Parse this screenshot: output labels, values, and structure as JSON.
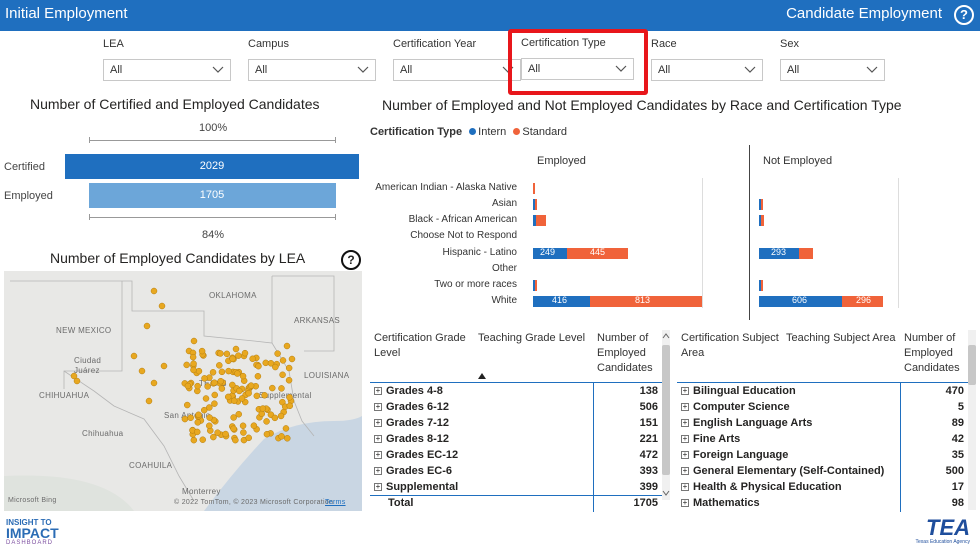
{
  "header": {
    "title": "Initial Employment",
    "right_title": "Candidate Employment",
    "help_glyph": "?"
  },
  "filters": [
    {
      "label": "LEA",
      "value": "All"
    },
    {
      "label": "Campus",
      "value": "All"
    },
    {
      "label": "Certification Year",
      "value": "All"
    },
    {
      "label": "Certification Type",
      "value": "All"
    },
    {
      "label": "Race",
      "value": "All"
    },
    {
      "label": "Sex",
      "value": "All"
    }
  ],
  "funnel": {
    "title": "Number of Certified and Employed Candidates",
    "top_pct": "100%",
    "bottom_pct": "84%",
    "rows": [
      {
        "label": "Certified",
        "value": "2029",
        "count": 2029,
        "color": "#1f6fbf"
      },
      {
        "label": "Employed",
        "value": "1705",
        "count": 1705,
        "color": "#6ca6d9"
      }
    ]
  },
  "map": {
    "title": "Number of Employed Candidates by LEA",
    "labels": [
      "OKLAHOMA",
      "ARKANSAS",
      "NEW MEXICO",
      "Ciudad Juárez",
      "CHIHUAHUA",
      "TEXAS",
      "San Antonio",
      "Chihuahua",
      "COAHUILA",
      "Monterrey",
      "Supplemental",
      "LOUISIANA"
    ],
    "attribution": "© 2022 TomTom, © 2023 Microsoft Corporation",
    "terms": "Terms",
    "bing": "Microsoft Bing",
    "help_glyph": "?",
    "dot_color": "#e8a820"
  },
  "race_chart": {
    "title": "Number of Employed and Not Employed Candidates by Race and Certification Type",
    "legend_title": "Certification Type",
    "legend": [
      {
        "name": "Intern",
        "color": "#1f6fbf"
      },
      {
        "name": "Standard",
        "color": "#f0633a"
      }
    ],
    "panels": [
      "Employed",
      "Not Employed"
    ],
    "categories": [
      "American Indian - Alaska Native",
      "Asian",
      "Black - African American",
      "Choose Not to Respond",
      "Hispanic - Latino",
      "Other",
      "Two or more races",
      "White"
    ],
    "bar_labels": {
      "emp_hisp_intern": "249",
      "emp_hisp_standard": "445",
      "emp_white_intern": "416",
      "emp_white_standard": "813",
      "not_hisp_intern": "293",
      "not_white_intern": "606",
      "not_white_standard": "296"
    }
  },
  "chart_data": {
    "type": "bar",
    "title": "Number of Employed and Not Employed Candidates by Race and Certification Type",
    "categories": [
      "American Indian - Alaska Native",
      "Asian",
      "Black - African American",
      "Choose Not to Respond",
      "Hispanic - Latino",
      "Other",
      "Two or more races",
      "White"
    ],
    "series": [
      {
        "name": "Employed - Intern",
        "values": [
          0,
          5,
          20,
          0,
          249,
          0,
          3,
          416
        ]
      },
      {
        "name": "Employed - Standard",
        "values": [
          5,
          5,
          70,
          0,
          445,
          0,
          18,
          813
        ]
      },
      {
        "name": "Not Employed - Intern",
        "values": [
          0,
          5,
          15,
          0,
          293,
          0,
          5,
          606
        ]
      },
      {
        "name": "Not Employed - Standard",
        "values": [
          0,
          3,
          20,
          0,
          105,
          0,
          5,
          296
        ]
      }
    ]
  },
  "grade_table": {
    "headers": [
      "Certification Grade Level",
      "Teaching Grade Level",
      "Number of Employed Candidates"
    ],
    "rows": [
      {
        "name": "Grades 4-8",
        "value": "138"
      },
      {
        "name": "Grades 6-12",
        "value": "506"
      },
      {
        "name": "Grades 7-12",
        "value": "151"
      },
      {
        "name": "Grades 8-12",
        "value": "221"
      },
      {
        "name": "Grades EC-12",
        "value": "472"
      },
      {
        "name": "Grades EC-6",
        "value": "393"
      },
      {
        "name": "Supplemental",
        "value": "399"
      }
    ],
    "total_label": "Total",
    "total_value": "1705"
  },
  "subject_table": {
    "headers": [
      "Certification Subject Area",
      "Teaching Subject Area",
      "Number of Employed Candidates"
    ],
    "rows": [
      {
        "name": "Bilingual Education",
        "value": "470"
      },
      {
        "name": "Computer Science",
        "value": "5"
      },
      {
        "name": "English Language Arts",
        "value": "89"
      },
      {
        "name": "Fine Arts",
        "value": "42"
      },
      {
        "name": "Foreign Language",
        "value": "35"
      },
      {
        "name": "General Elementary (Self-Contained)",
        "value": "500"
      },
      {
        "name": "Health & Physical Education",
        "value": "17"
      },
      {
        "name": "Mathematics",
        "value": "98"
      }
    ]
  },
  "footer": {
    "left_logo_lines": [
      "INSIGHT TO",
      "IMPACT",
      "DASHBOARD"
    ],
    "right_logo_text": "TEA",
    "right_logo_sub": "Texas Education Agency"
  }
}
